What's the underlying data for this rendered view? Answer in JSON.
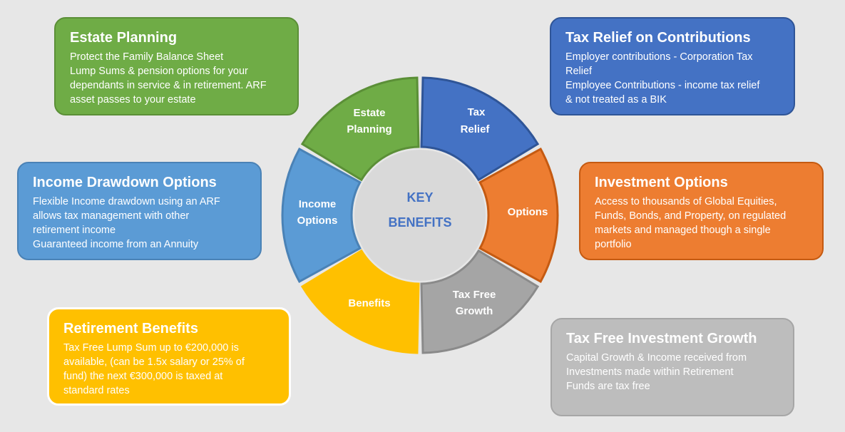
{
  "colors": {
    "green": "#6fac46",
    "green_border": "#5b8f37",
    "blue_dark": "#4472c4",
    "blue_dark_border": "#2f5597",
    "orange": "#ed7d31",
    "orange_border": "#c55a11",
    "gray": "#a5a5a5",
    "gray_border": "#8a8a8a",
    "gold": "#ffc000",
    "gold_border": "#ffffff",
    "blue_light": "#5b9bd5",
    "blue_light_border": "#4a82b6",
    "card_gray": "#bdbdbd",
    "card_gray_border": "#a6a6a6",
    "center_fill": "#d9d9d9",
    "center_text": "#4472c4"
  },
  "center": {
    "line1": "KEY",
    "line2": "BENEFITS"
  },
  "segments": {
    "tax": {
      "line1": "Tax",
      "line2": "Relief"
    },
    "options": {
      "line1": "Options"
    },
    "growth": {
      "line1": "Tax Free",
      "line2": "Growth"
    },
    "benefits": {
      "line1": "Benefits"
    },
    "income": {
      "line1": "Income",
      "line2": "Options"
    },
    "estate": {
      "line1": "Estate",
      "line2": "Planning"
    }
  },
  "cards": {
    "estate": {
      "title": "Estate Planning",
      "lines": [
        "Protect the Family Balance Sheet",
        "Lump Sums & pension options for your",
        "dependants in service & in retirement. ARF",
        "asset passes to your estate"
      ]
    },
    "tax": {
      "title": "Tax Relief on Contributions",
      "lines": [
        "Employer contributions - Corporation Tax",
        "Relief",
        "Employee Contributions -  income tax relief",
        "& not treated as a BIK"
      ]
    },
    "income": {
      "title": "Income Drawdown Options",
      "lines": [
        "Flexible Income drawdown using an ARF",
        "allows tax management with other",
        "retirement income",
        "Guaranteed income from an Annuity"
      ]
    },
    "invest": {
      "title": "Investment Options",
      "lines": [
        "Access to thousands of Global Equities,",
        "Funds, Bonds, and Property, on regulated",
        "markets and managed though a single",
        "portfolio"
      ]
    },
    "retire": {
      "title": "Retirement Benefits",
      "lines": [
        "Tax Free Lump Sum up to €200,000 is",
        "available, (can be 1.5x salary or 25% of",
        "fund) the next €300,000 is taxed at",
        "standard rates"
      ]
    },
    "growth": {
      "title": "Tax Free Investment Growth",
      "lines": [
        "Capital Growth & Income received from",
        "Investments made within Retirement",
        "Funds are tax free"
      ]
    }
  }
}
